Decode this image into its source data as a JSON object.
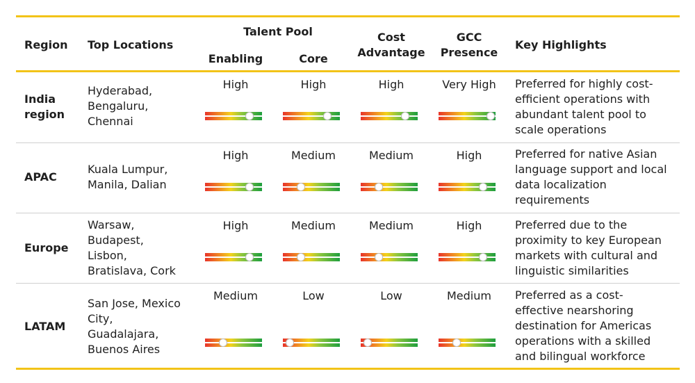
{
  "headers": {
    "region": "Region",
    "top_locations": "Top Locations",
    "talent_pool": "Talent Pool",
    "enabling": "Enabling",
    "core": "Core",
    "cost_advantage": "Cost\nAdvantage",
    "gcc_presence": "GCC\nPresence",
    "key_highlights": "Key Highlights"
  },
  "scale": [
    "Low",
    "Medium",
    "High",
    "Very High"
  ],
  "scale_fraction": {
    "Low": 0.12,
    "Medium": 0.32,
    "High": 0.78,
    "Very High": 0.92
  },
  "rows": [
    {
      "region": "India\nregion",
      "locations": "Hyderabad,\nBengaluru,\nChennai",
      "enabling": "High",
      "core": "High",
      "cost": "High",
      "gcc": "Very High",
      "highlights": "Preferred for highly cost-\nefficient operations with\nabundant talent pool to\nscale operations"
    },
    {
      "region": "APAC",
      "locations": "Kuala Lumpur,\nManila, Dalian",
      "enabling": "High",
      "core": "Medium",
      "cost": "Medium",
      "gcc": "High",
      "highlights": "Preferred for native Asian\nlanguage support and local\ndata localization\nrequirements"
    },
    {
      "region": "Europe",
      "locations": "Warsaw,\nBudapest,\nLisbon,\nBratislava, Cork",
      "enabling": "High",
      "core": "Medium",
      "cost": "Medium",
      "gcc": "High",
      "highlights": "Preferred due to the\nproximity to key European\nmarkets with cultural and\nlinguistic similarities"
    },
    {
      "region": "LATAM",
      "locations": "San Jose, Mexico\nCity,\nGuadalajara,\nBuenos Aires",
      "enabling": "Medium",
      "core": "Low",
      "cost": "Low",
      "gcc": "Medium",
      "highlights": "Preferred as a cost-\neffective nearshoring\ndestination for Americas\noperations with a skilled\nand bilingual workforce"
    }
  ],
  "colors": {
    "accent_rule": "#f2c318",
    "scale_low": "#e8342a",
    "scale_mid": "#f3d21c",
    "scale_high": "#1e9e3e"
  }
}
